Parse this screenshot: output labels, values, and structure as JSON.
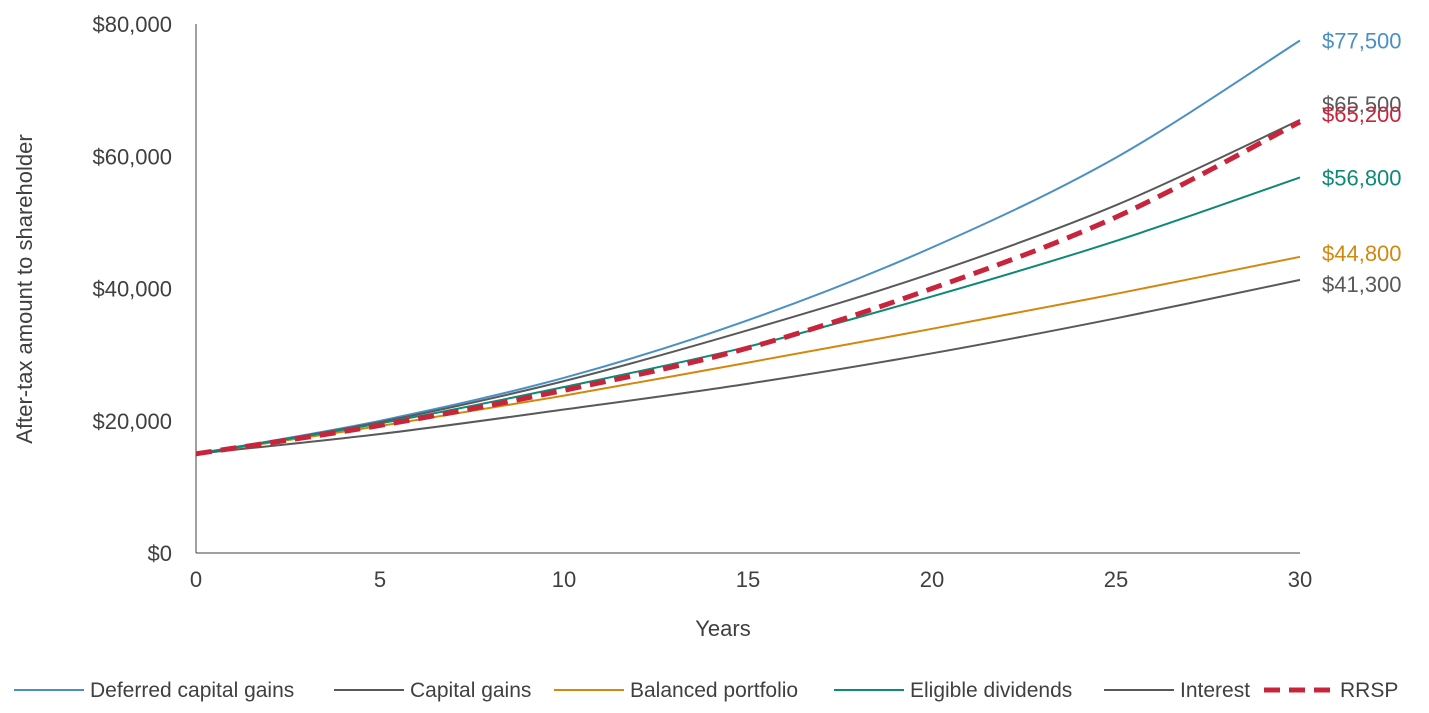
{
  "chart_data": {
    "type": "line",
    "title": "",
    "xlabel": "Years",
    "ylabel": "After-tax amount to shareholder",
    "xlim": [
      0,
      30
    ],
    "ylim": [
      0,
      80000
    ],
    "x_ticks": [
      "0",
      "5",
      "10",
      "15",
      "20",
      "25",
      "30"
    ],
    "y_ticks": [
      "$0",
      "$20,000",
      "$40,000",
      "$60,000",
      "$80,000"
    ],
    "grid": false,
    "legend_position": "bottom",
    "x": [
      0,
      5,
      10,
      15,
      20,
      25,
      30
    ],
    "series": [
      {
        "name": "Deferred capital gains",
        "color": "#4a90c4",
        "dashed": false,
        "values": [
          15000,
          20000,
          26500,
          35200,
          46200,
          59800,
          77500
        ],
        "end_label": "$77,500"
      },
      {
        "name": "Capital gains",
        "color": "#595959",
        "dashed": false,
        "values": [
          15000,
          19800,
          26000,
          33700,
          42300,
          52600,
          65500
        ],
        "end_label": "$65,500"
      },
      {
        "name": "Balanced portfolio",
        "color": "#d4870d",
        "dashed": false,
        "values": [
          15000,
          19200,
          23800,
          28800,
          33900,
          39200,
          44800
        ],
        "end_label": "$44,800"
      },
      {
        "name": "Eligible dividends",
        "color": "#0e8a74",
        "dashed": false,
        "values": [
          15000,
          19600,
          25100,
          31200,
          38800,
          47200,
          56800
        ],
        "end_label": "$56,800"
      },
      {
        "name": "Interest",
        "color": "#595959",
        "dashed": false,
        "values": [
          15000,
          18000,
          21700,
          25600,
          30200,
          35500,
          41300
        ],
        "end_label": "$41,300"
      },
      {
        "name": "RRSP",
        "color": "#c8243c",
        "dashed": true,
        "values": [
          15000,
          19300,
          24600,
          31000,
          40000,
          50800,
          65200
        ],
        "end_label": "$65,200"
      }
    ]
  }
}
